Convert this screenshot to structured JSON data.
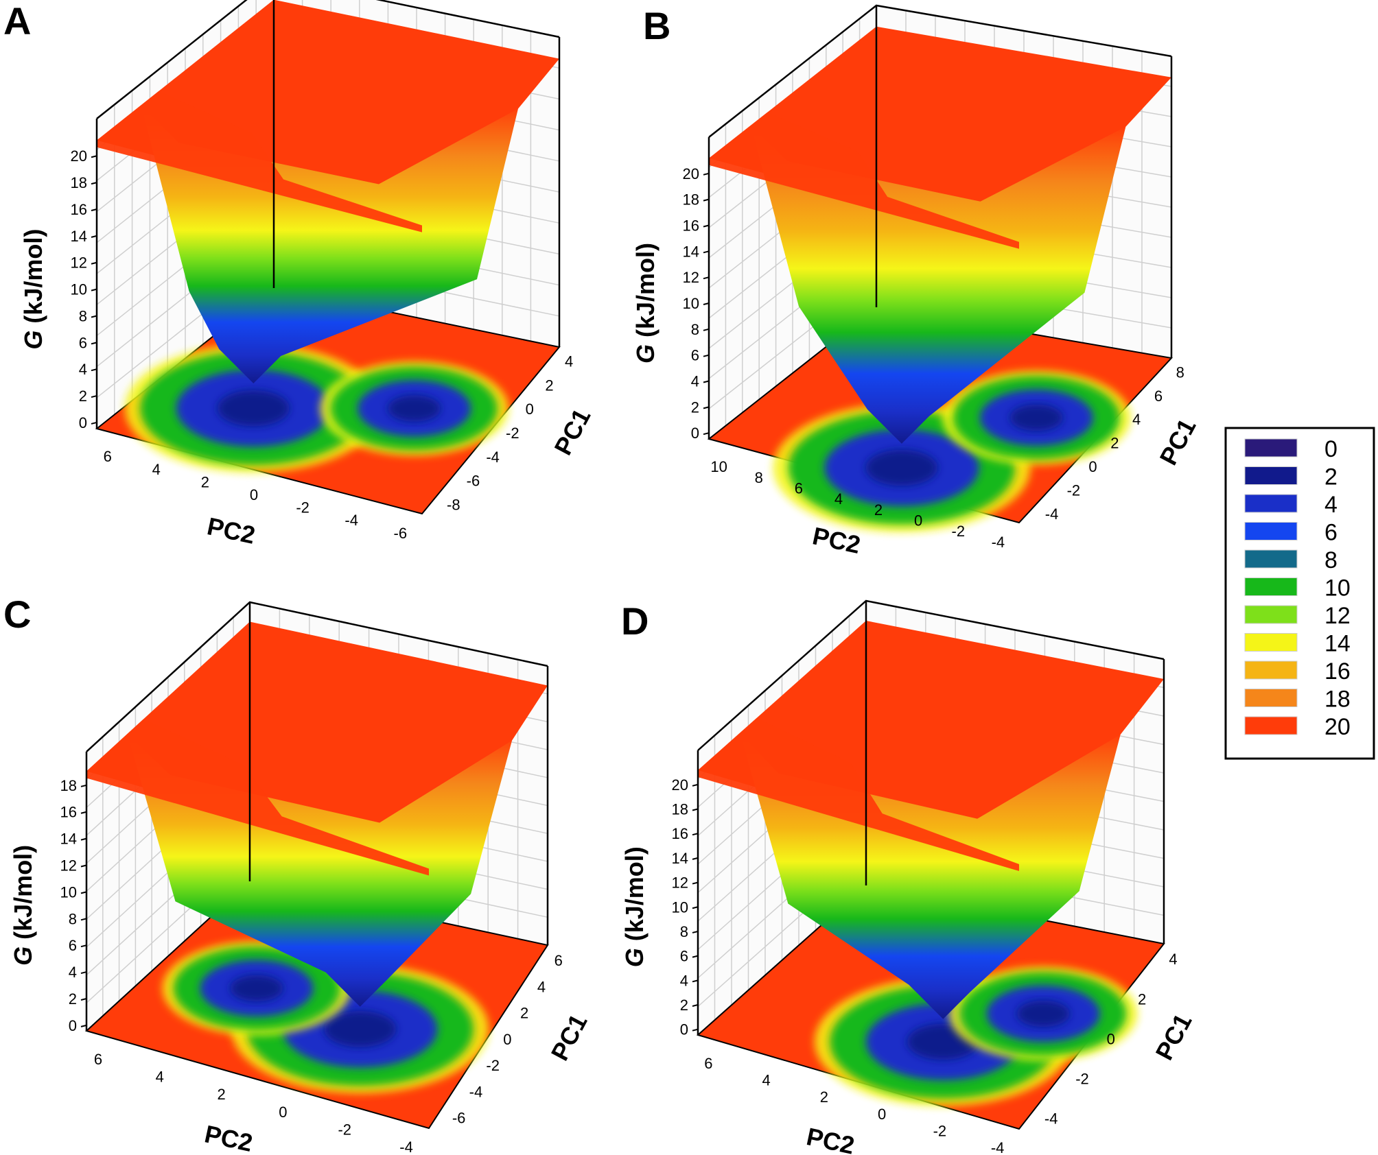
{
  "figure": {
    "legend": {
      "levels": [
        "0",
        "2",
        "4",
        "6",
        "8",
        "10",
        "12",
        "14",
        "16",
        "18",
        "20"
      ],
      "colors": [
        "#2a1a7a",
        "#111a8c",
        "#1a2fc8",
        "#1446f0",
        "#136a8a",
        "#17b81a",
        "#7ee01a",
        "#f5f518",
        "#f5b414",
        "#f5861a",
        "#ff3c0a"
      ]
    }
  },
  "chart_data": [
    {
      "type": "surface",
      "panel": "A",
      "zlabel_italic": "G",
      "zlabel_rest": " (kJ/mol)",
      "xlabel": "PC2",
      "ylabel": "PC1",
      "z_ticks": [
        "0",
        "2",
        "4",
        "6",
        "8",
        "10",
        "12",
        "14",
        "16",
        "18",
        "20"
      ],
      "x_ticks": [
        "6",
        "4",
        "2",
        "0",
        "-2",
        "-4",
        "-6"
      ],
      "y_ticks": [
        "-8",
        "-6",
        "-4",
        "-2",
        "0",
        "2",
        "4"
      ],
      "zlim": [
        0,
        20
      ],
      "minima": [
        {
          "PC2": 1.0,
          "PC1": 1.0,
          "G": 4
        },
        {
          "PC2": -2.0,
          "PC1": 3.0,
          "G": 2
        }
      ]
    },
    {
      "type": "surface",
      "panel": "B",
      "zlabel_italic": "G",
      "zlabel_rest": " (kJ/mol)",
      "xlabel": "PC2",
      "ylabel": "PC1",
      "z_ticks": [
        "0",
        "2",
        "4",
        "6",
        "8",
        "10",
        "12",
        "14",
        "16",
        "18",
        "20"
      ],
      "x_ticks": [
        "10",
        "8",
        "6",
        "4",
        "2",
        "0",
        "-2",
        "-4"
      ],
      "y_ticks": [
        "-4",
        "-2",
        "0",
        "2",
        "4",
        "6",
        "8"
      ],
      "zlim": [
        0,
        20
      ],
      "minima": [
        {
          "PC2": 0.5,
          "PC1": -3.0,
          "G": 0
        },
        {
          "PC2": -3.0,
          "PC1": 2.0,
          "G": 4
        }
      ]
    },
    {
      "type": "surface",
      "panel": "C",
      "zlabel_italic": "G",
      "zlabel_rest": " (kJ/mol)",
      "xlabel": "PC2",
      "ylabel": "PC1",
      "z_ticks": [
        "0",
        "2",
        "4",
        "6",
        "8",
        "10",
        "12",
        "14",
        "16",
        "18"
      ],
      "x_ticks": [
        "6",
        "4",
        "2",
        "0",
        "-2",
        "-4"
      ],
      "y_ticks": [
        "-6",
        "-4",
        "-2",
        "0",
        "2",
        "4",
        "6"
      ],
      "zlim": [
        0,
        18
      ],
      "minima": [
        {
          "PC2": -1.5,
          "PC1": 0.0,
          "G": 0
        },
        {
          "PC2": 4.0,
          "PC1": 1.0,
          "G": 6
        }
      ]
    },
    {
      "type": "surface",
      "panel": "D",
      "zlabel_italic": "G",
      "zlabel_rest": " (kJ/mol)",
      "xlabel": "PC2",
      "ylabel": "PC1",
      "z_ticks": [
        "0",
        "2",
        "4",
        "6",
        "8",
        "10",
        "12",
        "14",
        "16",
        "18",
        "20"
      ],
      "x_ticks": [
        "6",
        "4",
        "2",
        "0",
        "-2",
        "-4"
      ],
      "y_ticks": [
        "-4",
        "-2",
        "0",
        "2",
        "4"
      ],
      "zlim": [
        0,
        20
      ],
      "minima": [
        {
          "PC2": -1.0,
          "PC1": -1.0,
          "G": 0
        },
        {
          "PC2": -3.0,
          "PC1": 2.0,
          "G": 4
        }
      ]
    }
  ]
}
